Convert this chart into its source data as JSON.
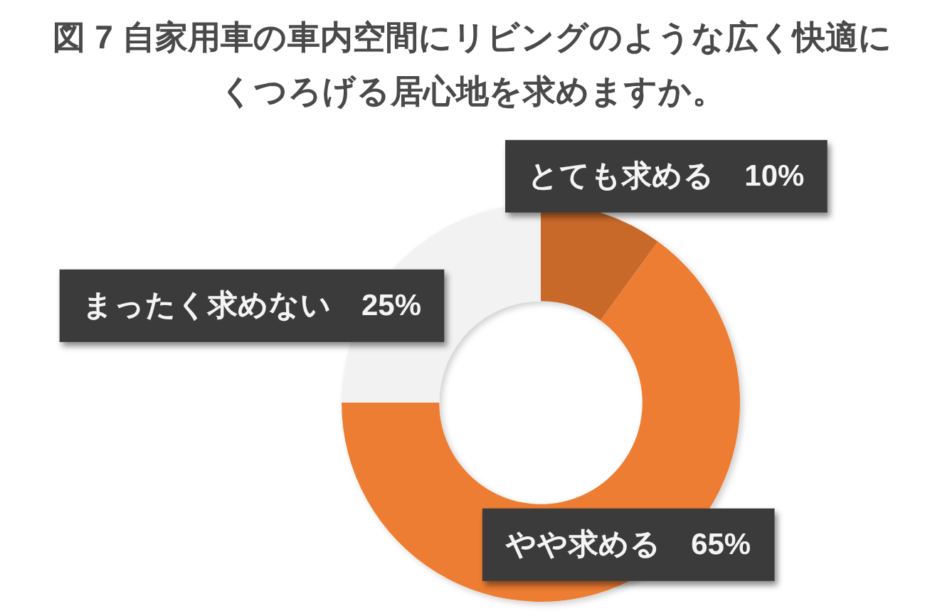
{
  "chart_data": {
    "type": "donut",
    "title": "図 7 自家用車の車内空間にリビングのような広く快適にくつろげる居心地を求めますか。",
    "categories": [
      "とても求める",
      "やや求める",
      "まったく求めない"
    ],
    "values": [
      10,
      65,
      25
    ],
    "colors": [
      "#c8692a",
      "#ed7d31",
      "#f2f2f2"
    ],
    "value_labels": [
      "10%",
      "65%",
      "25%"
    ]
  }
}
